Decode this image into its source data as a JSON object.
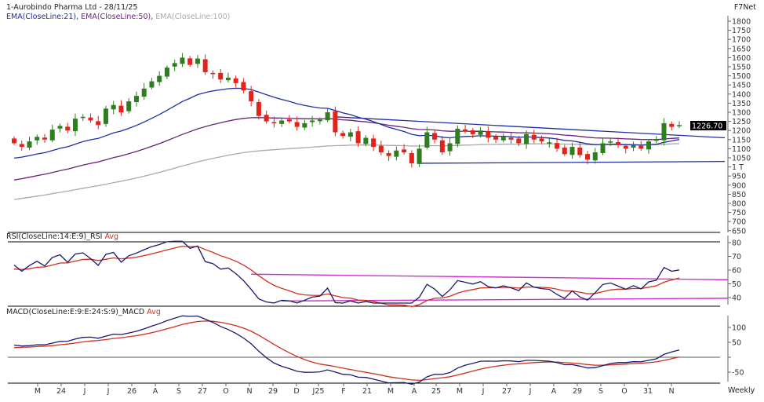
{
  "header": {
    "title": "1-Aurobindo Pharma Ltd - 28/11/25",
    "brand": "F7Net",
    "indicators": [
      {
        "label": "EMA(CloseLine:21)",
        "color": "#1f2ea8"
      },
      {
        "label": "EMA(CloseLine:50)",
        "color": "#6a1f7a"
      },
      {
        "label": "EMA(CloseLine:100)",
        "color": "#aaaaaa"
      }
    ],
    "timeframe": "Weekly"
  },
  "chart_data": [
    {
      "type": "candlestick",
      "panel": "price",
      "ylim": [
        650,
        1800
      ],
      "yticks": [
        "1800",
        "1750",
        "1700",
        "1650",
        "1600",
        "1550",
        "1500",
        "1450",
        "1400",
        "1350",
        "1300",
        "1250",
        "1200",
        "1150",
        "1100",
        "1050",
        "1 T",
        "950",
        "900",
        "850",
        "800",
        "750",
        "700",
        "650"
      ],
      "ytick_values": [
        1800,
        1750,
        1700,
        1650,
        1600,
        1550,
        1500,
        1450,
        1400,
        1350,
        1300,
        1250,
        1200,
        1150,
        1100,
        1050,
        1000,
        950,
        900,
        850,
        800,
        750,
        700,
        650
      ],
      "last_price": "1226.70",
      "first_open": 1150,
      "closes": [
        1130,
        1110,
        1140,
        1165,
        1150,
        1205,
        1225,
        1200,
        1265,
        1275,
        1255,
        1230,
        1320,
        1340,
        1300,
        1360,
        1390,
        1430,
        1470,
        1500,
        1545,
        1570,
        1600,
        1560,
        1595,
        1520,
        1510,
        1480,
        1490,
        1460,
        1420,
        1360,
        1280,
        1250,
        1240,
        1255,
        1250,
        1220,
        1240,
        1255,
        1260,
        1300,
        1190,
        1170,
        1190,
        1130,
        1160,
        1110,
        1080,
        1060,
        1090,
        1080,
        1020,
        1100,
        1190,
        1150,
        1080,
        1130,
        1210,
        1195,
        1180,
        1200,
        1160,
        1150,
        1165,
        1150,
        1130,
        1180,
        1150,
        1140,
        1135,
        1100,
        1070,
        1110,
        1065,
        1040,
        1080,
        1130,
        1140,
        1120,
        1100,
        1120,
        1100,
        1140,
        1150,
        1240,
        1220,
        1230
      ],
      "colors": {
        "up": "#2e7d1f",
        "down": "#e2231a",
        "ema21": "#1f2ea8",
        "ema50": "#6a1f7a",
        "ema100": "#aaaaaa",
        "trendline": "#1f2ea8"
      },
      "trendlines": [
        {
          "from": {
            "bar": 42,
            "price": 1275
          },
          "to": {
            "bar": 93,
            "price": 1160
          }
        },
        {
          "from": {
            "bar": 53,
            "price": 1020
          },
          "to": {
            "bar": 93,
            "price": 1030
          }
        }
      ]
    },
    {
      "type": "line",
      "panel": "rsi",
      "title": "RSI(CloseLine:14:E:9)_RSI",
      "avg_label": "Avg",
      "ylim": [
        35,
        80
      ],
      "yticks": [
        "80",
        "70",
        "60",
        "50",
        "40"
      ],
      "ytick_values": [
        80,
        70,
        60,
        50,
        40
      ],
      "colors": {
        "rsi": "#1a1a6e",
        "avg": "#d03020",
        "level": "#cc33cc"
      },
      "levels": [
        {
          "from": {
            "bar": 31,
            "value": 57
          },
          "to": {
            "bar": 93,
            "value": 53
          }
        },
        {
          "from": {
            "bar": 35,
            "value": 37.5
          },
          "to": {
            "bar": 93,
            "value": 39.5
          }
        }
      ]
    },
    {
      "type": "line",
      "panel": "macd",
      "title": "MACD(CloseLine:E:9:E:24:S:9)_MACD",
      "avg_label": "Avg",
      "ylim": [
        -80,
        150
      ],
      "yticks": [
        "100",
        "50",
        "-50"
      ],
      "ytick_values": [
        100,
        50,
        -50
      ],
      "colors": {
        "macd": "#1a1a6e",
        "avg": "#d03020"
      }
    }
  ],
  "xaxis": {
    "labels": [
      "M",
      "24",
      "J",
      "J",
      "26",
      "A",
      "S",
      "27",
      "O",
      "N",
      "29",
      "D",
      "J25",
      "F",
      "21",
      "M",
      "A",
      "25",
      "M",
      "J",
      "27",
      "J",
      "A",
      "29",
      "S",
      "O",
      "31",
      "N"
    ]
  }
}
